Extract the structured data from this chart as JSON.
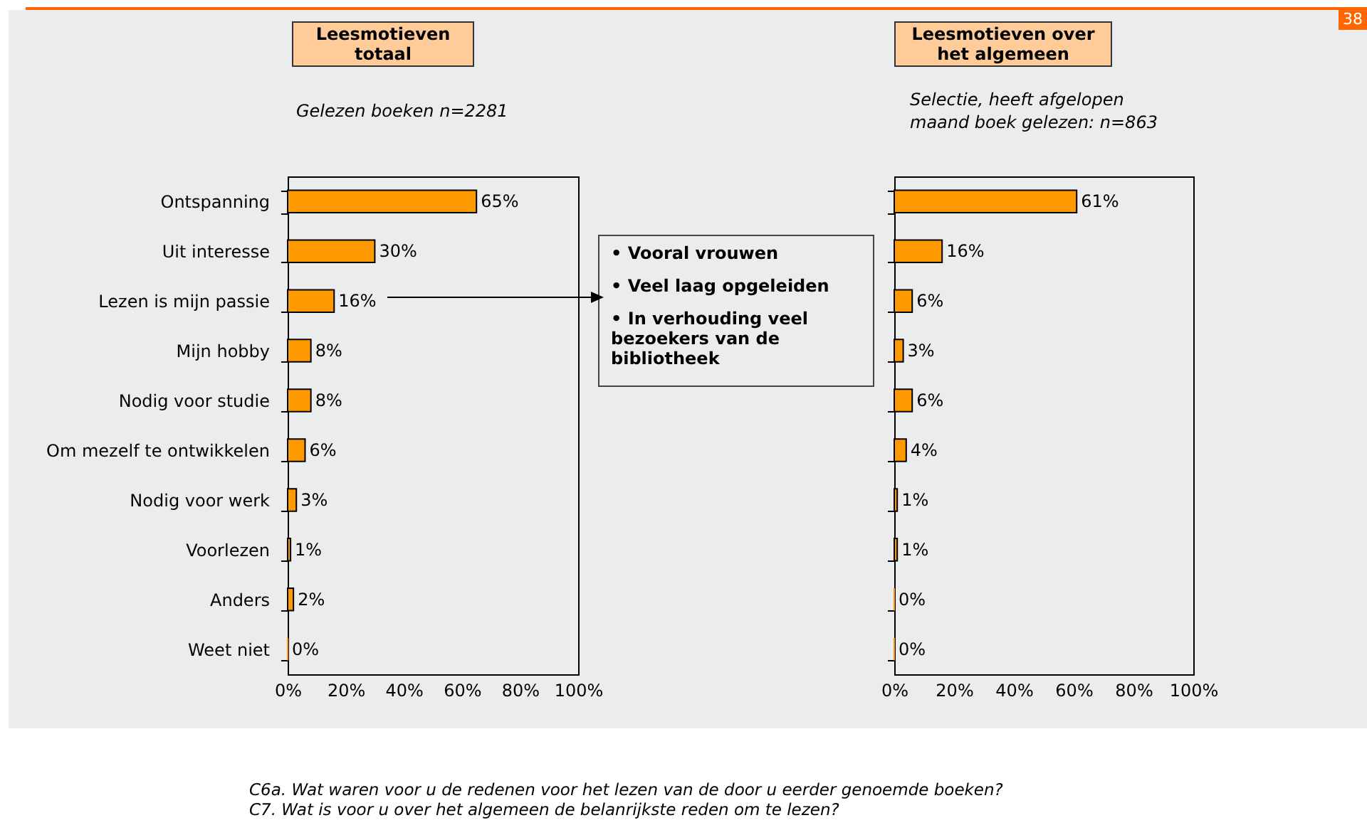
{
  "chart_data": [
    {
      "type": "bar",
      "orientation": "horizontal",
      "title": "Leesmotieven totaal",
      "subtitle": "Gelezen boeken n=2281",
      "categories": [
        "Ontspanning",
        "Uit interesse",
        "Lezen is mijn passie",
        "Mijn hobby",
        "Nodig voor studie",
        "Om mezelf te ontwikkelen",
        "Nodig voor werk",
        "Voorlezen",
        "Anders",
        "Weet niet"
      ],
      "values": [
        65,
        30,
        16,
        8,
        8,
        6,
        3,
        1,
        2,
        0
      ],
      "value_labels": [
        "65%",
        "30%",
        "16%",
        "8%",
        "8%",
        "6%",
        "3%",
        "1%",
        "2%",
        "0%"
      ],
      "color": "#ff9900",
      "xlim": [
        0,
        100
      ],
      "xticks": [
        {
          "value": 0,
          "label": "0%"
        },
        {
          "value": 20,
          "label": "20%"
        },
        {
          "value": 40,
          "label": "40%"
        },
        {
          "value": 60,
          "label": "60%"
        },
        {
          "value": 80,
          "label": "80%"
        },
        {
          "value": 100,
          "label": "100%"
        }
      ],
      "grid": false,
      "annotations": [
        "• Vooral vrouwen",
        "• Veel laag opgeleiden",
        "• In verhouding veel bezoekers van de bibliotheek",
        "C6a. Wat waren voor u de redenen voor het lezen van de door u eerder genoemde boeken?"
      ]
    },
    {
      "type": "bar",
      "orientation": "horizontal",
      "title": "Leesmotieven over het algemeen",
      "subtitle": "Selectie, heeft afgelopen maand boek gelezen: n=863",
      "categories": [
        null,
        null,
        null,
        null,
        null,
        null,
        null,
        null,
        null,
        null
      ],
      "values": [
        61,
        16,
        6,
        3,
        6,
        4,
        1,
        1,
        0,
        0
      ],
      "value_labels": [
        "61%",
        "16%",
        "6%",
        "3%",
        "6%",
        "4%",
        "1%",
        "1%",
        "0%",
        "0%"
      ],
      "color": "#ff9900",
      "xlim": [
        0,
        100
      ],
      "xticks": [
        {
          "value": 0,
          "label": "0%"
        },
        {
          "value": 20,
          "label": "20%"
        },
        {
          "value": 40,
          "label": "40%"
        },
        {
          "value": 60,
          "label": "60%"
        },
        {
          "value": 80,
          "label": "80%"
        },
        {
          "value": 100,
          "label": "100%"
        }
      ],
      "grid": false,
      "tick_labels": "x",
      "annotations": [
        "C7. Wat is voor u over het algemeen de belanrijkste reden om te lezen?",
        "38"
      ]
    }
  ]
}
